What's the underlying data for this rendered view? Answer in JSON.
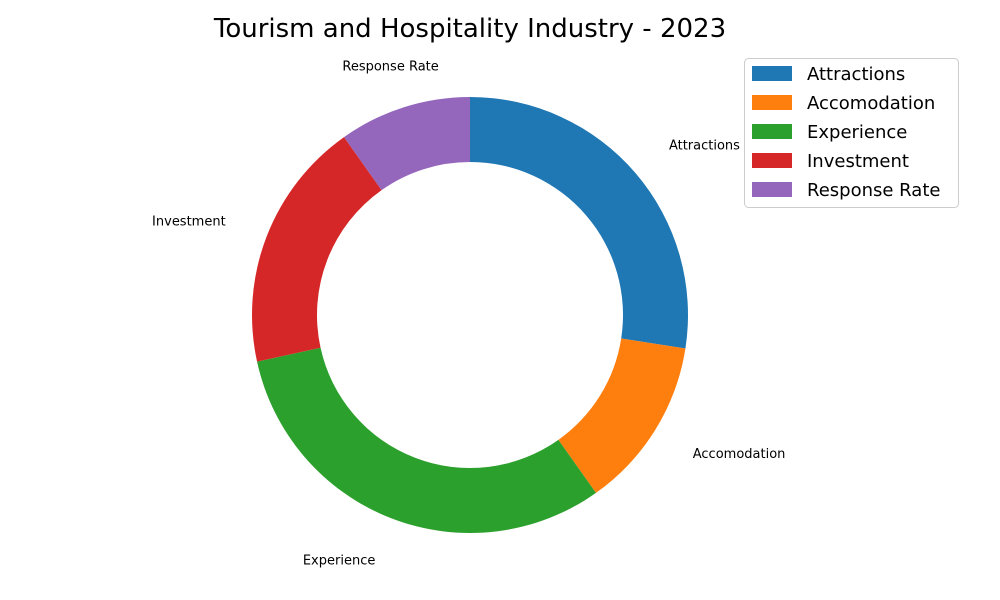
{
  "chart_data": {
    "type": "pie",
    "style": "donut",
    "title": "Tourism and Hospitality Industry - 2023",
    "categories": [
      "Attractions",
      "Accomodation",
      "Experience",
      "Investment",
      "Response Rate"
    ],
    "values": [
      28,
      13,
      32,
      19,
      10
    ],
    "colors": [
      "#1f77b4",
      "#ff7f0e",
      "#2ca02c",
      "#d62728",
      "#9467bd"
    ],
    "start_angle_deg": 90,
    "direction": "clockwise",
    "legend": {
      "position": "top-right",
      "entries": [
        "Attractions",
        "Accomodation",
        "Experience",
        "Investment",
        "Response Rate"
      ]
    }
  }
}
